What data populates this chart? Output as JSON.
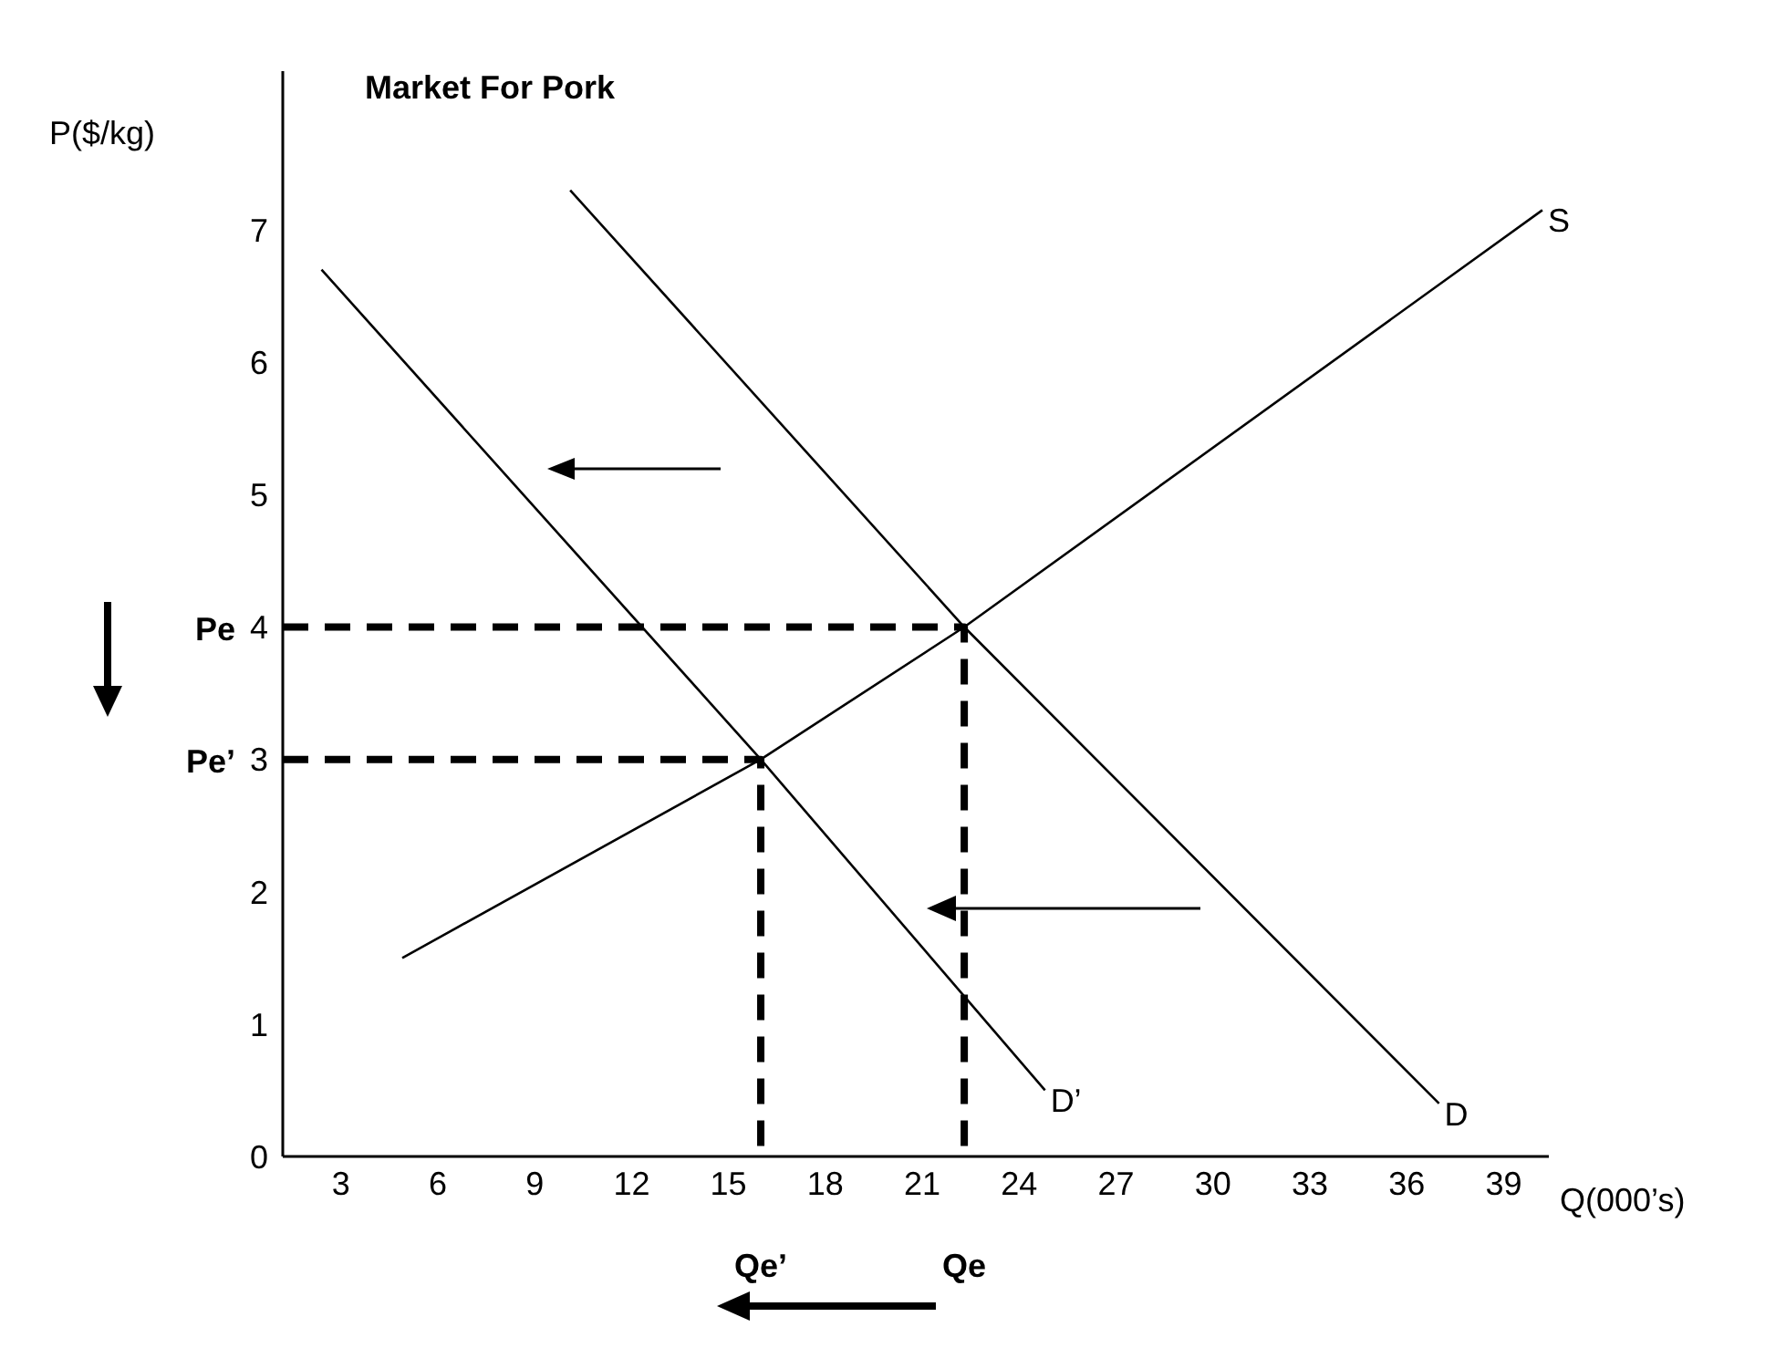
{
  "chart_data": {
    "type": "line",
    "title": "Market For Pork",
    "xlabel": "Q(000’s)",
    "ylabel": "P($/kg)",
    "xlim": [
      1.2,
      40.4
    ],
    "xticks": [
      3,
      6,
      9,
      12,
      15,
      18,
      21,
      24,
      27,
      30,
      33,
      36,
      39
    ],
    "ylim": [
      0,
      8.2
    ],
    "yticks": [
      0,
      1,
      2,
      3,
      4,
      5,
      6,
      7
    ],
    "grid": false,
    "legend": false,
    "marker": "none",
    "series": [
      {
        "name": "S",
        "color": "#000000",
        "x": [
          4.9,
          16,
          22.3,
          40.2
        ],
        "values": [
          1.5,
          3,
          4,
          7.15
        ]
      },
      {
        "name": "D",
        "color": "#000000",
        "x": [
          10.1,
          22.3,
          37
        ],
        "values": [
          7.3,
          4,
          0.4
        ]
      },
      {
        "name": "D’",
        "color": "#000000",
        "x": [
          2.4,
          16,
          24.8
        ],
        "values": [
          6.7,
          3,
          0.5
        ]
      },
      {
        "color": "#000000",
        "line_style": "dashed",
        "x": [
          1.2,
          22.3,
          22.3
        ],
        "values": [
          4,
          4,
          0
        ]
      },
      {
        "color": "#000000",
        "line_style": "dashed",
        "x": [
          1.2,
          16,
          16
        ],
        "values": [
          3,
          3,
          0
        ]
      }
    ],
    "annotations": [
      {
        "text": "Pe",
        "x": 1.2,
        "y": 4
      },
      {
        "text": "Pe’",
        "x": 1.2,
        "y": 3
      },
      {
        "text": "Qe’",
        "x": 16,
        "y": 0
      },
      {
        "text": "Qe",
        "x": 22.3,
        "y": 0
      }
    ]
  }
}
